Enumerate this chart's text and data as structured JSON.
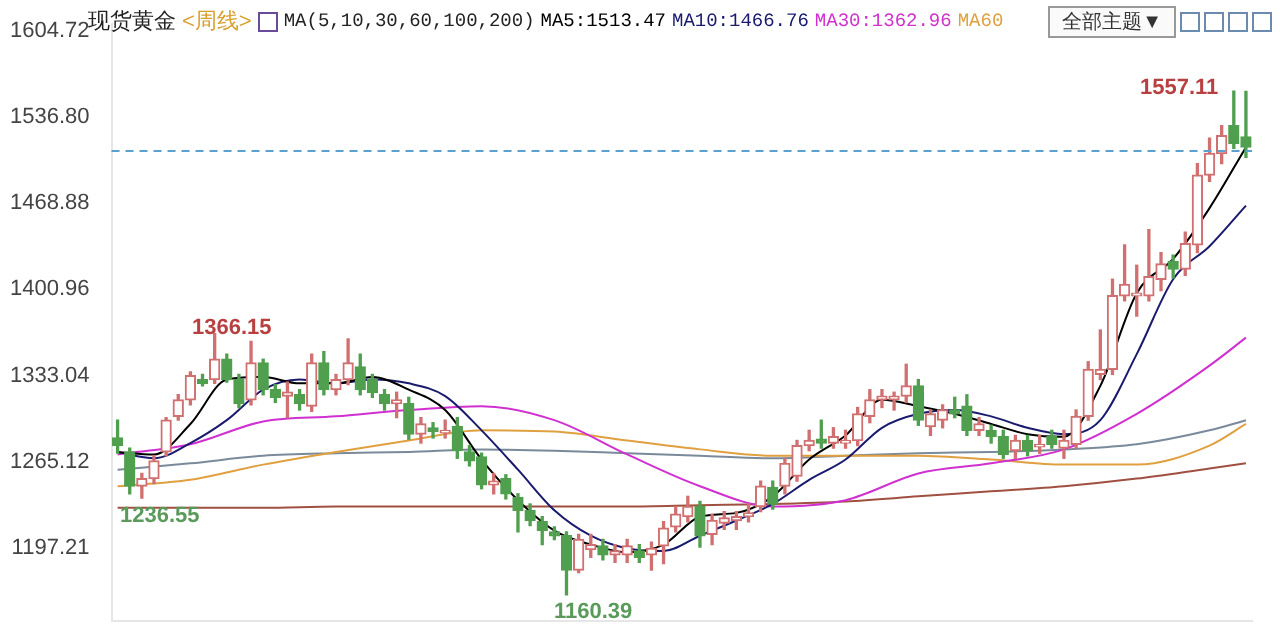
{
  "chart_data": {
    "type": "candlestick",
    "title": "现货黄金",
    "subtitle": "<周线>",
    "annotations": [
      "MA(5,10,30,60,100,200)",
      "全部主题▼",
      "1557.11",
      "1366.15",
      "1236.55",
      "1160.39"
    ],
    "categories": [
      null,
      null,
      null,
      null,
      null,
      null,
      null,
      null,
      null,
      null,
      null,
      null,
      null,
      null,
      null,
      null,
      null,
      null,
      null,
      null,
      null,
      null,
      null,
      null,
      null,
      null,
      null,
      null,
      null,
      null,
      null,
      null,
      null,
      null,
      null,
      null,
      null,
      null,
      null,
      null,
      null,
      null,
      null,
      null,
      null,
      null,
      null,
      null,
      null,
      null,
      null,
      null,
      null,
      null,
      null,
      null,
      null,
      null,
      null,
      null,
      null,
      null,
      null,
      null,
      null,
      null,
      null,
      null,
      null,
      null,
      null,
      null,
      null,
      null,
      null,
      null,
      null,
      null,
      null,
      null,
      null,
      null,
      null,
      null,
      null,
      null,
      null,
      null,
      null,
      null,
      null,
      null,
      null,
      null
    ],
    "ohlc": [
      [
        1284,
        1298,
        1272,
        1278
      ],
      [
        1273,
        1276,
        1240,
        1246
      ],
      [
        1246,
        1256,
        1236.55,
        1252
      ],
      [
        1252,
        1270,
        1248,
        1266
      ],
      [
        1273,
        1300,
        1270,
        1298
      ],
      [
        1301,
        1318,
        1298,
        1314
      ],
      [
        1314,
        1336,
        1310,
        1333
      ],
      [
        1330,
        1334,
        1325,
        1327
      ],
      [
        1330,
        1366.15,
        1327,
        1346
      ],
      [
        1346,
        1350,
        1328,
        1330
      ],
      [
        1330,
        1334,
        1308,
        1311
      ],
      [
        1314,
        1360,
        1310,
        1343
      ],
      [
        1343,
        1346,
        1318,
        1322
      ],
      [
        1322,
        1326,
        1312,
        1316
      ],
      [
        1317,
        1328,
        1300,
        1320
      ],
      [
        1318,
        1322,
        1306,
        1311
      ],
      [
        1309,
        1350,
        1305,
        1343
      ],
      [
        1343,
        1352,
        1318,
        1322
      ],
      [
        1322,
        1334,
        1318,
        1330
      ],
      [
        1330,
        1362,
        1326,
        1343
      ],
      [
        1340,
        1350,
        1318,
        1322
      ],
      [
        1330,
        1334,
        1316,
        1320
      ],
      [
        1318,
        1322,
        1306,
        1311
      ],
      [
        1311,
        1320,
        1300,
        1314
      ],
      [
        1311,
        1316,
        1283,
        1287
      ],
      [
        1287,
        1300,
        1280,
        1295
      ],
      [
        1292,
        1296,
        1284,
        1289
      ],
      [
        1288,
        1298,
        1284,
        1290
      ],
      [
        1293,
        1300,
        1268,
        1274
      ],
      [
        1273,
        1278,
        1262,
        1266
      ],
      [
        1269,
        1272,
        1244,
        1247
      ],
      [
        1247,
        1256,
        1240,
        1250
      ],
      [
        1252,
        1255,
        1236,
        1240
      ],
      [
        1237,
        1240,
        1210,
        1227
      ],
      [
        1227,
        1232,
        1215,
        1219
      ],
      [
        1218,
        1222,
        1200,
        1211
      ],
      [
        1210,
        1214,
        1204,
        1207
      ],
      [
        1207,
        1210,
        1160.39,
        1180
      ],
      [
        1180,
        1208,
        1178,
        1204
      ],
      [
        1196,
        1208,
        1190,
        1200
      ],
      [
        1199,
        1204,
        1188,
        1192
      ],
      [
        1192,
        1200,
        1186,
        1195
      ],
      [
        1192,
        1204,
        1186,
        1199
      ],
      [
        1195,
        1200,
        1186,
        1190
      ],
      [
        1192,
        1202,
        1180,
        1197
      ],
      [
        1199,
        1218,
        1185,
        1213
      ],
      [
        1214,
        1230,
        1210,
        1224
      ],
      [
        1222,
        1238,
        1218,
        1230
      ],
      [
        1230,
        1234,
        1198,
        1207
      ],
      [
        1208,
        1224,
        1200,
        1219
      ],
      [
        1217,
        1226,
        1212,
        1221
      ],
      [
        1219,
        1226,
        1212,
        1222
      ],
      [
        1222,
        1232,
        1218,
        1225
      ],
      [
        1230,
        1250,
        1226,
        1246
      ],
      [
        1245,
        1250,
        1228,
        1232
      ],
      [
        1246,
        1268,
        1240,
        1264
      ],
      [
        1254,
        1282,
        1250,
        1278
      ],
      [
        1278,
        1290,
        1274,
        1282
      ],
      [
        1283,
        1298,
        1276,
        1280
      ],
      [
        1280,
        1292,
        1276,
        1285
      ],
      [
        1280,
        1290,
        1276,
        1282
      ],
      [
        1282,
        1308,
        1278,
        1303
      ],
      [
        1301,
        1322,
        1296,
        1314
      ],
      [
        1314,
        1322,
        1308,
        1317
      ],
      [
        1314,
        1320,
        1306,
        1317
      ],
      [
        1317,
        1342,
        1312,
        1325
      ],
      [
        1325,
        1330,
        1294,
        1298
      ],
      [
        1293,
        1306,
        1286,
        1303
      ],
      [
        1298,
        1310,
        1292,
        1306
      ],
      [
        1306,
        1316,
        1300,
        1303
      ],
      [
        1309,
        1318,
        1286,
        1290
      ],
      [
        1290,
        1300,
        1286,
        1295
      ],
      [
        1290,
        1294,
        1280,
        1285
      ],
      [
        1285,
        1290,
        1268,
        1271
      ],
      [
        1274,
        1286,
        1268,
        1282
      ],
      [
        1282,
        1286,
        1270,
        1274
      ],
      [
        1277,
        1286,
        1272,
        1279
      ],
      [
        1285,
        1290,
        1276,
        1279
      ],
      [
        1276,
        1290,
        1268,
        1282
      ],
      [
        1279,
        1306,
        1276,
        1301
      ],
      [
        1301,
        1344,
        1298,
        1338
      ],
      [
        1334,
        1369,
        1330,
        1338
      ],
      [
        1338,
        1409,
        1334,
        1396
      ],
      [
        1396,
        1436,
        1392,
        1405
      ],
      [
        1396,
        1420,
        1380,
        1398
      ],
      [
        1396,
        1448,
        1392,
        1411
      ],
      [
        1409,
        1430,
        1400,
        1421
      ],
      [
        1423,
        1428,
        1410,
        1417
      ],
      [
        1417,
        1446,
        1412,
        1437
      ],
      [
        1436,
        1500,
        1430,
        1491
      ],
      [
        1491,
        1520,
        1486,
        1508
      ],
      [
        1508,
        1530,
        1500,
        1522
      ],
      [
        1530,
        1557.11,
        1512,
        1516
      ],
      [
        1521,
        1557,
        1505,
        1513
      ]
    ],
    "series": [
      {
        "type": "line",
        "name": "MA5:1513.47",
        "color": "#000000",
        "values": [
          1273,
          null,
          null,
          1271,
          null,
          null,
          1295,
          null,
          null,
          1330,
          null,
          null,
          1332,
          null,
          null,
          1327,
          null,
          null,
          1327,
          null,
          null,
          1332,
          null,
          null,
          1322,
          null,
          null,
          1306,
          null,
          null,
          1267,
          null,
          null,
          1235,
          null,
          null,
          1211,
          null,
          null,
          1200,
          null,
          null,
          1194,
          null,
          null,
          1200,
          null,
          null,
          1222,
          null,
          null,
          1225,
          null,
          null,
          1238,
          null,
          null,
          1267,
          null,
          null,
          1286,
          null,
          null,
          1314,
          null,
          null,
          1309,
          null,
          null,
          1303,
          null,
          null,
          1295,
          null,
          null,
          1287,
          null,
          null,
          1285,
          null,
          null,
          1325,
          null,
          null,
          1398,
          null,
          null,
          1425,
          null,
          null,
          1465,
          null,
          null,
          1513
        ]
      },
      {
        "type": "line",
        "name": "MA10:1466.76",
        "color": "#1a1a6e",
        "values": [
          1273,
          null,
          null,
          1268,
          null,
          null,
          1280,
          null,
          null,
          1298,
          null,
          null,
          1322,
          null,
          null,
          1330,
          null,
          null,
          1327,
          null,
          null,
          1330,
          null,
          null,
          1327,
          null,
          null,
          1317,
          null,
          null,
          1290,
          null,
          null,
          1259,
          null,
          null,
          1227,
          null,
          null,
          1207,
          null,
          null,
          1197,
          null,
          null,
          1195,
          null,
          null,
          1207,
          null,
          null,
          1219,
          null,
          null,
          1232,
          null,
          null,
          1251,
          null,
          null,
          1267,
          null,
          null,
          1292,
          null,
          null,
          1303,
          null,
          null,
          1306,
          null,
          null,
          1301,
          null,
          null,
          1292,
          null,
          null,
          1287,
          null,
          null,
          1298,
          null,
          null,
          1350,
          null,
          null,
          1409,
          null,
          null,
          1435,
          null,
          null,
          1467
        ]
      },
      {
        "type": "line",
        "name": "MA30:1362.96",
        "color": "#d030d0",
        "values": [
          1271,
          null,
          null,
          null,
          null,
          null,
          1279,
          null,
          null,
          null,
          null,
          null,
          1297,
          null,
          null,
          null,
          null,
          null,
          1301,
          null,
          null,
          null,
          null,
          null,
          1306,
          null,
          null,
          null,
          null,
          null,
          1309,
          null,
          null,
          null,
          null,
          null,
          1298,
          null,
          null,
          null,
          null,
          null,
          1271,
          null,
          null,
          null,
          null,
          null,
          1246,
          null,
          null,
          null,
          null,
          null,
          1230,
          null,
          null,
          null,
          null,
          null,
          1235,
          null,
          null,
          null,
          null,
          null,
          1256,
          null,
          null,
          null,
          null,
          null,
          1264,
          null,
          null,
          null,
          null,
          null,
          1275,
          null,
          null,
          null,
          null,
          null,
          1303,
          null,
          null,
          null,
          null,
          null,
          1341,
          null,
          null,
          1363
        ]
      },
      {
        "type": "line",
        "name": "MA60",
        "color": "#e0a040",
        "values": [
          1246,
          null,
          null,
          null,
          null,
          null,
          1251,
          null,
          null,
          null,
          null,
          null,
          1263,
          null,
          null,
          null,
          null,
          null,
          1273,
          null,
          null,
          null,
          null,
          null,
          1282,
          null,
          null,
          null,
          null,
          null,
          1290,
          null,
          null,
          null,
          null,
          null,
          1289,
          null,
          null,
          null,
          null,
          null,
          1282,
          null,
          null,
          null,
          null,
          null,
          1275,
          null,
          null,
          null,
          null,
          null,
          1270,
          null,
          null,
          null,
          null,
          null,
          1270,
          null,
          null,
          null,
          null,
          null,
          1270,
          null,
          null,
          null,
          null,
          null,
          1267,
          null,
          null,
          null,
          null,
          null,
          1263,
          null,
          null,
          null,
          null,
          null,
          1263,
          null,
          null,
          null,
          null,
          null,
          1278,
          null,
          null,
          1295
        ]
      },
      {
        "type": "line",
        "color": "#7a8a9a",
        "values": [
          1259,
          null,
          null,
          null,
          null,
          null,
          1264,
          null,
          null,
          null,
          null,
          null,
          1270,
          null,
          null,
          null,
          null,
          null,
          1272,
          null,
          null,
          null,
          null,
          null,
          1273,
          null,
          null,
          null,
          null,
          null,
          1275,
          null,
          null,
          null,
          null,
          null,
          1274,
          null,
          null,
          null,
          null,
          null,
          1272,
          null,
          null,
          null,
          null,
          null,
          1270,
          null,
          null,
          null,
          null,
          null,
          1268,
          null,
          null,
          null,
          null,
          null,
          1270,
          null,
          null,
          null,
          null,
          null,
          1272,
          null,
          null,
          null,
          null,
          null,
          1273,
          null,
          null,
          null,
          null,
          null,
          1275,
          null,
          null,
          null,
          null,
          null,
          1279,
          null,
          null,
          null,
          null,
          null,
          1290,
          null,
          null,
          1298
        ]
      },
      {
        "type": "line",
        "color": "#a05040",
        "values": [
          1229,
          null,
          null,
          null,
          null,
          null,
          1229,
          null,
          null,
          null,
          null,
          null,
          1229,
          null,
          null,
          null,
          null,
          null,
          1230,
          null,
          null,
          null,
          null,
          null,
          1230,
          null,
          null,
          null,
          null,
          null,
          1230,
          null,
          null,
          null,
          null,
          null,
          1230,
          null,
          null,
          null,
          null,
          null,
          1230,
          null,
          null,
          null,
          null,
          null,
          1231,
          null,
          null,
          null,
          null,
          null,
          1232,
          null,
          null,
          null,
          null,
          null,
          1234,
          null,
          null,
          null,
          null,
          null,
          1238,
          null,
          null,
          null,
          null,
          null,
          1242,
          null,
          null,
          null,
          null,
          null,
          1246,
          null,
          null,
          null,
          null,
          null,
          1252,
          null,
          null,
          null,
          null,
          null,
          1260,
          null,
          null,
          1264
        ]
      }
    ],
    "ylim": [
      1140,
      1610
    ],
    "yticks": [
      1604.72,
      {
        "value": 1536.8,
        "label": "1536.80"
      },
      1468.88,
      1400.96,
      1333.04,
      1265.12,
      1197.21
    ],
    "ref_lines": [
      {
        "axis": "y",
        "value": 1510,
        "color": "#5aa0d0",
        "line_style": "dashed"
      }
    ],
    "legend": "top",
    "grid": false,
    "tick_labels": "y"
  }
}
